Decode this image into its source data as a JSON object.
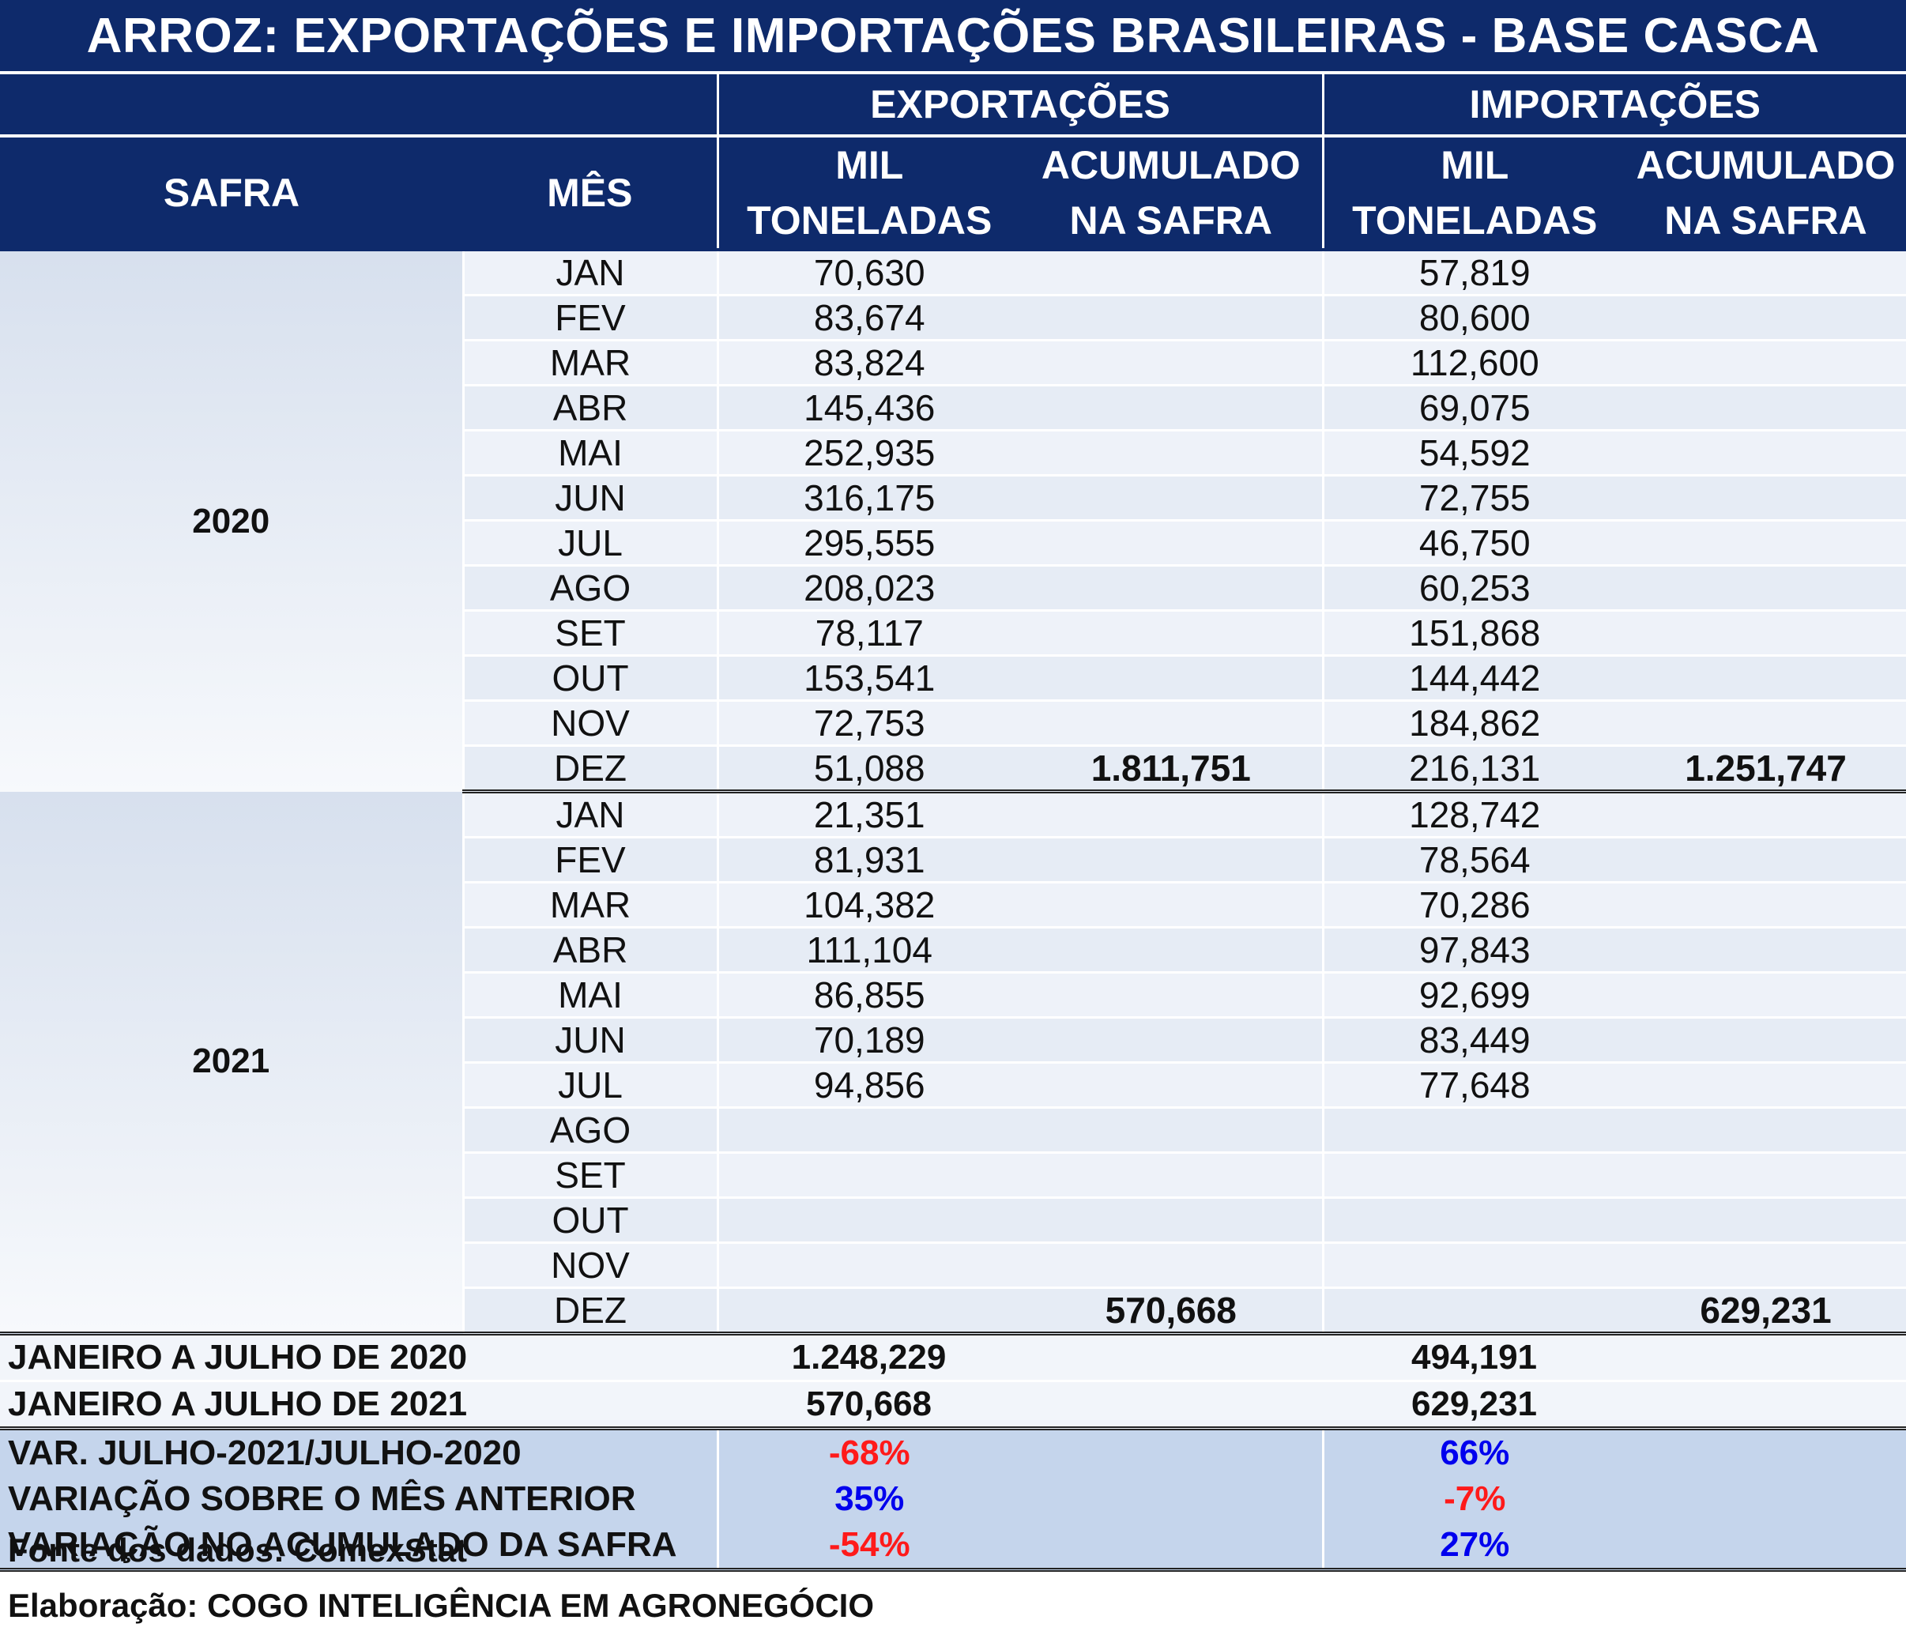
{
  "title": "ARROZ: EXPORTAÇÕES E IMPORTAÇÕES BRASILEIRAS - BASE CASCA",
  "headers": {
    "exportacoes": "EXPORTAÇÕES",
    "importacoes": "IMPORTAÇÕES",
    "safra": "SAFRA",
    "mes": "MÊS",
    "mil_1": "MIL",
    "mil_2": "TONELADAS",
    "acum_1": "ACUMULADO",
    "acum_2": "NA SAFRA"
  },
  "blocks": [
    {
      "safra": "2020",
      "rows": [
        {
          "mes": "JAN",
          "exp": "70,630",
          "imp": "57,819"
        },
        {
          "mes": "FEV",
          "exp": "83,674",
          "imp": "80,600"
        },
        {
          "mes": "MAR",
          "exp": "83,824",
          "imp": "112,600"
        },
        {
          "mes": "ABR",
          "exp": "145,436",
          "imp": "69,075"
        },
        {
          "mes": "MAI",
          "exp": "252,935",
          "imp": "54,592"
        },
        {
          "mes": "JUN",
          "exp": "316,175",
          "imp": "72,755"
        },
        {
          "mes": "JUL",
          "exp": "295,555",
          "imp": "46,750"
        },
        {
          "mes": "AGO",
          "exp": "208,023",
          "imp": "60,253"
        },
        {
          "mes": "SET",
          "exp": "78,117",
          "imp": "151,868"
        },
        {
          "mes": "OUT",
          "exp": "153,541",
          "imp": "144,442"
        },
        {
          "mes": "NOV",
          "exp": "72,753",
          "imp": "184,862"
        },
        {
          "mes": "DEZ",
          "exp": "51,088",
          "imp": "216,131"
        }
      ],
      "acum_exp": "1.811,751",
      "acum_imp": "1.251,747"
    },
    {
      "safra": "2021",
      "rows": [
        {
          "mes": "JAN",
          "exp": "21,351",
          "imp": "128,742"
        },
        {
          "mes": "FEV",
          "exp": "81,931",
          "imp": "78,564"
        },
        {
          "mes": "MAR",
          "exp": "104,382",
          "imp": "70,286"
        },
        {
          "mes": "ABR",
          "exp": "111,104",
          "imp": "97,843"
        },
        {
          "mes": "MAI",
          "exp": "86,855",
          "imp": "92,699"
        },
        {
          "mes": "JUN",
          "exp": "70,189",
          "imp": "83,449"
        },
        {
          "mes": "JUL",
          "exp": "94,856",
          "imp": "77,648"
        },
        {
          "mes": "AGO",
          "exp": "",
          "imp": ""
        },
        {
          "mes": "SET",
          "exp": "",
          "imp": ""
        },
        {
          "mes": "OUT",
          "exp": "",
          "imp": ""
        },
        {
          "mes": "NOV",
          "exp": "",
          "imp": ""
        },
        {
          "mes": "DEZ",
          "exp": "",
          "imp": ""
        }
      ],
      "acum_exp": "570,668",
      "acum_imp": "629,231"
    }
  ],
  "totals": [
    {
      "label": "JANEIRO A JULHO DE 2020",
      "exp": "1.248,229",
      "imp": "494,191"
    },
    {
      "label": "JANEIRO A JULHO DE 2021",
      "exp": "570,668",
      "imp": "629,231"
    }
  ],
  "variations": [
    {
      "label": "VAR. JULHO-2021/JULHO-2020",
      "exp": "-68%",
      "exp_sign": "neg",
      "imp": "66%",
      "imp_sign": "pos"
    },
    {
      "label": "VARIAÇÃO SOBRE O MÊS ANTERIOR",
      "exp": "35%",
      "exp_sign": "pos",
      "imp": "-7%",
      "imp_sign": "neg"
    },
    {
      "label": "VARIAÇÃO NO ACUMULADO DA SAFRA",
      "exp": "-54%",
      "exp_sign": "neg",
      "imp": "27%",
      "imp_sign": "pos"
    }
  ],
  "footer": {
    "fonte": "Fonte dos dados: ComexStat",
    "elaboracao": "Elaboração: COGO INTELIGÊNCIA EM AGRONEGÓCIO"
  },
  "colors": {
    "header_bg": "#0e2a6b",
    "variation_bg": "#c5d5ec",
    "negative": "#ff1a1a",
    "positive": "#0000ee"
  }
}
